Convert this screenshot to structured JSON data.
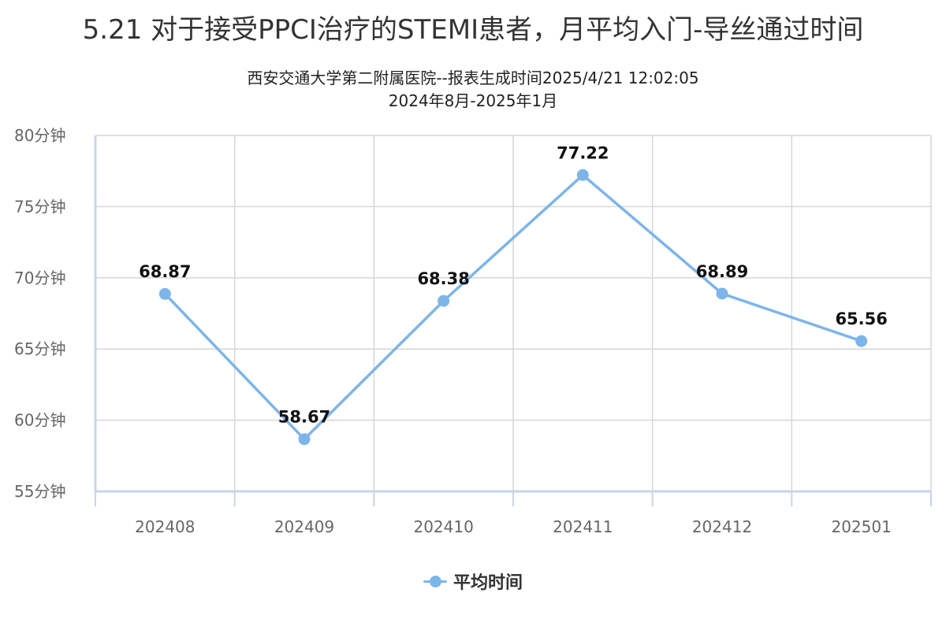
{
  "colors": {
    "series": "#7db5e8",
    "grid": "#d6d6d6",
    "axis": "#c7d5e6",
    "tick_text": "#666666",
    "label_text": "#111111"
  },
  "chart_data": {
    "type": "line",
    "title": "5.21 对于接受PPCI治疗的STEMI患者，月平均入门-导丝通过时间",
    "subtitle": "西安交通大学第二附属医院--报表生成时间2025/4/21 12:02:05",
    "subtitle2": "2024年8月-2025年1月",
    "categories": [
      "202408",
      "202409",
      "202410",
      "202411",
      "202412",
      "202501"
    ],
    "series": [
      {
        "name": "平均时间",
        "values": [
          68.87,
          58.67,
          68.38,
          77.22,
          68.89,
          65.56
        ],
        "labels": [
          "68.87",
          "58.67",
          "68.38",
          "77.22",
          "68.89",
          "65.56"
        ]
      }
    ],
    "ylim": [
      55,
      80
    ],
    "yticks": [
      {
        "value": 80,
        "label": "80分钟"
      },
      {
        "value": 75,
        "label": "75分钟"
      },
      {
        "value": 70,
        "label": "70分钟"
      },
      {
        "value": 65,
        "label": "65分钟"
      },
      {
        "value": 60,
        "label": "60分钟"
      },
      {
        "value": 55,
        "label": "55分钟"
      }
    ],
    "xlabel": "",
    "ylabel": "",
    "grid": true,
    "legend_position": "bottom-center"
  }
}
